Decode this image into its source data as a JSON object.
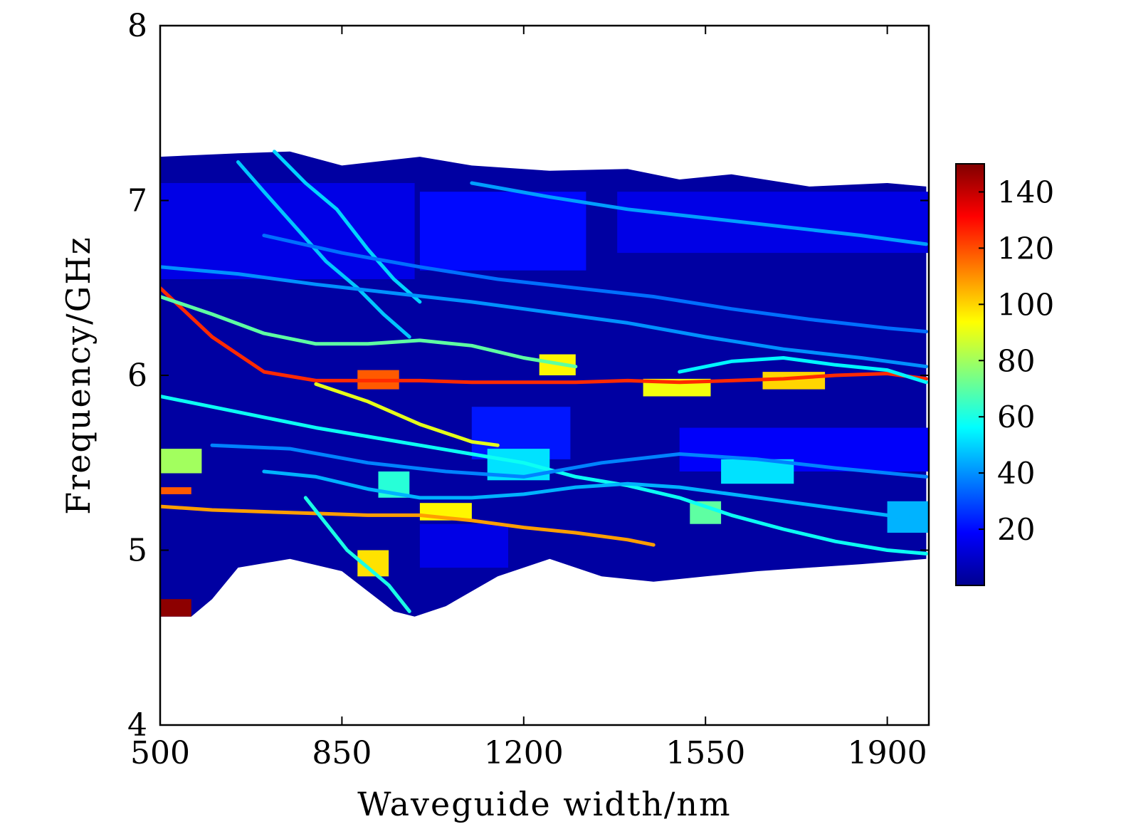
{
  "chart_data": {
    "type": "heatmap",
    "title": "",
    "xlabel": "Waveguide width/nm",
    "ylabel": "Frequency/GHz",
    "xlim": [
      500,
      1980
    ],
    "ylim": [
      4,
      8
    ],
    "x_ticks": [
      "500",
      "850",
      "1200",
      "1550",
      "1900"
    ],
    "x_tick_values": [
      500,
      850,
      1200,
      1550,
      1900
    ],
    "y_ticks": [
      "4",
      "5",
      "6",
      "7",
      "8"
    ],
    "y_tick_values": [
      4,
      5,
      6,
      7,
      8
    ],
    "colorbar": {
      "colormap": "jet",
      "range": [
        0,
        150
      ],
      "ticks": [
        "20",
        "40",
        "60",
        "80",
        "100",
        "120",
        "140"
      ],
      "tick_values": [
        20,
        40,
        60,
        80,
        100,
        120,
        140
      ]
    },
    "background_value": 5,
    "region": {
      "upper_boundary": [
        [
          500,
          7.25
        ],
        [
          650,
          7.27
        ],
        [
          750,
          7.28
        ],
        [
          850,
          7.2
        ],
        [
          1000,
          7.25
        ],
        [
          1100,
          7.2
        ],
        [
          1250,
          7.17
        ],
        [
          1400,
          7.18
        ],
        [
          1500,
          7.12
        ],
        [
          1600,
          7.15
        ],
        [
          1750,
          7.08
        ],
        [
          1900,
          7.1
        ],
        [
          1975,
          7.08
        ]
      ],
      "lower_boundary": [
        [
          500,
          4.62
        ],
        [
          560,
          4.62
        ],
        [
          600,
          4.72
        ],
        [
          650,
          4.9
        ],
        [
          750,
          4.95
        ],
        [
          850,
          4.88
        ],
        [
          950,
          4.65
        ],
        [
          990,
          4.62
        ],
        [
          1050,
          4.68
        ],
        [
          1150,
          4.85
        ],
        [
          1250,
          4.95
        ],
        [
          1350,
          4.85
        ],
        [
          1450,
          4.82
        ],
        [
          1550,
          4.85
        ],
        [
          1650,
          4.88
        ],
        [
          1750,
          4.9
        ],
        [
          1850,
          4.92
        ],
        [
          1975,
          4.95
        ]
      ]
    },
    "patches": [
      {
        "x0": 500,
        "x1": 990,
        "y0": 6.55,
        "y1": 7.1,
        "value": 15
      },
      {
        "x0": 1000,
        "x1": 1320,
        "y0": 6.6,
        "y1": 7.05,
        "value": 20
      },
      {
        "x0": 1380,
        "x1": 1980,
        "y0": 6.7,
        "y1": 7.05,
        "value": 15
      },
      {
        "x0": 1100,
        "x1": 1290,
        "y0": 5.52,
        "y1": 5.82,
        "value": 22
      },
      {
        "x0": 1500,
        "x1": 1980,
        "y0": 5.45,
        "y1": 5.7,
        "value": 18
      },
      {
        "x0": 1000,
        "x1": 1170,
        "y0": 4.9,
        "y1": 5.15,
        "value": 15
      },
      {
        "x0": 1230,
        "x1": 1300,
        "y0": 6.0,
        "y1": 6.12,
        "value": 95
      },
      {
        "x0": 880,
        "x1": 960,
        "y0": 5.92,
        "y1": 6.03,
        "value": 118
      },
      {
        "x0": 1660,
        "x1": 1780,
        "y0": 5.92,
        "y1": 6.02,
        "value": 100
      },
      {
        "x0": 1430,
        "x1": 1560,
        "y0": 5.88,
        "y1": 5.98,
        "value": 92
      },
      {
        "x0": 500,
        "x1": 580,
        "y0": 5.44,
        "y1": 5.58,
        "value": 80
      },
      {
        "x0": 500,
        "x1": 560,
        "y0": 5.32,
        "y1": 5.36,
        "value": 118
      },
      {
        "x0": 1000,
        "x1": 1100,
        "y0": 5.17,
        "y1": 5.27,
        "value": 95
      },
      {
        "x0": 920,
        "x1": 980,
        "y0": 5.3,
        "y1": 5.45,
        "value": 62
      },
      {
        "x0": 1130,
        "x1": 1250,
        "y0": 5.4,
        "y1": 5.58,
        "value": 52
      },
      {
        "x0": 1580,
        "x1": 1720,
        "y0": 5.38,
        "y1": 5.52,
        "value": 52
      },
      {
        "x0": 1520,
        "x1": 1580,
        "y0": 5.15,
        "y1": 5.28,
        "value": 70
      },
      {
        "x0": 880,
        "x1": 940,
        "y0": 4.85,
        "y1": 5.0,
        "value": 98
      },
      {
        "x0": 500,
        "x1": 560,
        "y0": 4.62,
        "y1": 4.72,
        "value": 148
      },
      {
        "x0": 1900,
        "x1": 1980,
        "y0": 5.1,
        "y1": 5.28,
        "value": 45
      }
    ],
    "curves": [
      {
        "value": 125,
        "points": [
          [
            500,
            6.5
          ],
          [
            600,
            6.22
          ],
          [
            700,
            6.02
          ],
          [
            800,
            5.97
          ],
          [
            900,
            5.97
          ],
          [
            1000,
            5.97
          ],
          [
            1100,
            5.96
          ],
          [
            1200,
            5.96
          ],
          [
            1300,
            5.96
          ],
          [
            1400,
            5.97
          ],
          [
            1500,
            5.96
          ],
          [
            1600,
            5.97
          ],
          [
            1700,
            5.98
          ],
          [
            1800,
            6.0
          ],
          [
            1900,
            6.01
          ],
          [
            1975,
            5.98
          ]
        ]
      },
      {
        "value": 108,
        "points": [
          [
            500,
            5.25
          ],
          [
            600,
            5.23
          ],
          [
            700,
            5.22
          ],
          [
            800,
            5.21
          ],
          [
            900,
            5.2
          ],
          [
            1000,
            5.2
          ],
          [
            1100,
            5.17
          ],
          [
            1200,
            5.13
          ],
          [
            1300,
            5.1
          ],
          [
            1400,
            5.06
          ],
          [
            1450,
            5.03
          ]
        ]
      },
      {
        "value": 90,
        "points": [
          [
            800,
            5.95
          ],
          [
            900,
            5.85
          ],
          [
            1000,
            5.72
          ],
          [
            1100,
            5.62
          ],
          [
            1150,
            5.6
          ]
        ]
      },
      {
        "value": 70,
        "points": [
          [
            500,
            6.45
          ],
          [
            600,
            6.35
          ],
          [
            700,
            6.24
          ],
          [
            800,
            6.18
          ],
          [
            900,
            6.18
          ],
          [
            1000,
            6.2
          ],
          [
            1100,
            6.17
          ],
          [
            1200,
            6.1
          ],
          [
            1300,
            6.05
          ]
        ]
      },
      {
        "value": 55,
        "points": [
          [
            1500,
            6.02
          ],
          [
            1600,
            6.08
          ],
          [
            1700,
            6.1
          ],
          [
            1800,
            6.06
          ],
          [
            1900,
            6.03
          ],
          [
            1975,
            5.96
          ]
        ]
      },
      {
        "value": 48,
        "points": [
          [
            650,
            7.22
          ],
          [
            700,
            7.05
          ],
          [
            760,
            6.85
          ],
          [
            820,
            6.65
          ],
          [
            880,
            6.5
          ],
          [
            930,
            6.35
          ],
          [
            980,
            6.22
          ]
        ]
      },
      {
        "value": 50,
        "points": [
          [
            720,
            7.28
          ],
          [
            780,
            7.1
          ],
          [
            840,
            6.95
          ],
          [
            900,
            6.72
          ],
          [
            950,
            6.55
          ],
          [
            1000,
            6.42
          ]
        ]
      },
      {
        "value": 58,
        "points": [
          [
            500,
            5.88
          ],
          [
            600,
            5.82
          ],
          [
            700,
            5.76
          ],
          [
            800,
            5.7
          ],
          [
            900,
            5.65
          ],
          [
            1000,
            5.6
          ],
          [
            1100,
            5.55
          ],
          [
            1200,
            5.5
          ],
          [
            1300,
            5.42
          ],
          [
            1400,
            5.37
          ],
          [
            1500,
            5.3
          ],
          [
            1600,
            5.2
          ],
          [
            1700,
            5.12
          ],
          [
            1800,
            5.05
          ],
          [
            1900,
            5.0
          ],
          [
            1975,
            4.98
          ]
        ]
      },
      {
        "value": 45,
        "points": [
          [
            700,
            5.45
          ],
          [
            800,
            5.42
          ],
          [
            900,
            5.35
          ],
          [
            1000,
            5.3
          ],
          [
            1100,
            5.3
          ],
          [
            1200,
            5.32
          ],
          [
            1300,
            5.36
          ],
          [
            1400,
            5.38
          ],
          [
            1500,
            5.36
          ],
          [
            1600,
            5.32
          ],
          [
            1700,
            5.28
          ],
          [
            1800,
            5.24
          ],
          [
            1900,
            5.2
          ],
          [
            1975,
            5.18
          ]
        ]
      },
      {
        "value": 40,
        "points": [
          [
            500,
            6.62
          ],
          [
            650,
            6.58
          ],
          [
            800,
            6.52
          ],
          [
            950,
            6.47
          ],
          [
            1100,
            6.42
          ],
          [
            1250,
            6.36
          ],
          [
            1400,
            6.3
          ],
          [
            1550,
            6.22
          ],
          [
            1700,
            6.15
          ],
          [
            1850,
            6.1
          ],
          [
            1975,
            6.05
          ]
        ]
      },
      {
        "value": 35,
        "points": [
          [
            700,
            6.8
          ],
          [
            850,
            6.7
          ],
          [
            1000,
            6.62
          ],
          [
            1150,
            6.55
          ],
          [
            1300,
            6.5
          ],
          [
            1450,
            6.45
          ],
          [
            1600,
            6.38
          ],
          [
            1750,
            6.32
          ],
          [
            1900,
            6.27
          ],
          [
            1975,
            6.25
          ]
        ]
      },
      {
        "value": 38,
        "points": [
          [
            600,
            5.6
          ],
          [
            750,
            5.58
          ],
          [
            900,
            5.5
          ],
          [
            1050,
            5.45
          ],
          [
            1200,
            5.42
          ],
          [
            1350,
            5.5
          ],
          [
            1500,
            5.55
          ],
          [
            1650,
            5.52
          ],
          [
            1800,
            5.47
          ],
          [
            1975,
            5.42
          ]
        ]
      },
      {
        "value": 42,
        "points": [
          [
            1100,
            7.1
          ],
          [
            1250,
            7.02
          ],
          [
            1400,
            6.95
          ],
          [
            1550,
            6.9
          ],
          [
            1700,
            6.85
          ],
          [
            1850,
            6.8
          ],
          [
            1975,
            6.75
          ]
        ]
      },
      {
        "value": 60,
        "points": [
          [
            780,
            5.3
          ],
          [
            820,
            5.15
          ],
          [
            860,
            5.0
          ],
          [
            900,
            4.9
          ],
          [
            940,
            4.8
          ],
          [
            980,
            4.65
          ]
        ]
      }
    ]
  }
}
